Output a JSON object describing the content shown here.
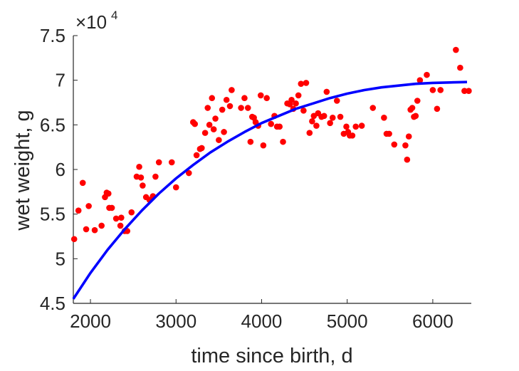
{
  "chart_data": {
    "type": "scatter",
    "title": "",
    "xlabel": "time since birth, d",
    "ylabel": "wet weight, g",
    "xlim": [
      1800,
      6450
    ],
    "ylim": [
      45000,
      75000
    ],
    "xticks": [
      2000,
      3000,
      4000,
      5000,
      6000
    ],
    "xtick_labels": [
      "2000",
      "3000",
      "4000",
      "5000",
      "6000"
    ],
    "yticks": [
      45000,
      50000,
      55000,
      60000,
      65000,
      70000,
      75000
    ],
    "ytick_labels": [
      "4.5",
      "5",
      "5.5",
      "6",
      "6.5",
      "7",
      "7.5"
    ],
    "y_multiplier": {
      "base": "×10",
      "exponent": "4"
    },
    "grid": false,
    "series": [
      {
        "kind": "points",
        "color": "#ff0000",
        "points": [
          [
            1810,
            52200
          ],
          [
            1860,
            55400
          ],
          [
            1910,
            58500
          ],
          [
            1950,
            53300
          ],
          [
            1980,
            55900
          ],
          [
            2050,
            53200
          ],
          [
            2130,
            53700
          ],
          [
            2170,
            56900
          ],
          [
            2190,
            57400
          ],
          [
            2210,
            57300
          ],
          [
            2220,
            55700
          ],
          [
            2250,
            55700
          ],
          [
            2300,
            54500
          ],
          [
            2350,
            53700
          ],
          [
            2360,
            54600
          ],
          [
            2400,
            53100
          ],
          [
            2430,
            53100
          ],
          [
            2480,
            55200
          ],
          [
            2540,
            59200
          ],
          [
            2570,
            60300
          ],
          [
            2590,
            59100
          ],
          [
            2610,
            58200
          ],
          [
            2650,
            56900
          ],
          [
            2690,
            56600
          ],
          [
            2730,
            57000
          ],
          [
            2760,
            59200
          ],
          [
            2800,
            60800
          ],
          [
            2950,
            60800
          ],
          [
            3000,
            58000
          ],
          [
            3150,
            59600
          ],
          [
            3200,
            65300
          ],
          [
            3220,
            65100
          ],
          [
            3240,
            61600
          ],
          [
            3280,
            62300
          ],
          [
            3300,
            62400
          ],
          [
            3340,
            64100
          ],
          [
            3370,
            66900
          ],
          [
            3390,
            65000
          ],
          [
            3420,
            68000
          ],
          [
            3440,
            64500
          ],
          [
            3460,
            65700
          ],
          [
            3500,
            63300
          ],
          [
            3540,
            66700
          ],
          [
            3560,
            64200
          ],
          [
            3590,
            67800
          ],
          [
            3630,
            67100
          ],
          [
            3650,
            68900
          ],
          [
            3760,
            66900
          ],
          [
            3800,
            68000
          ],
          [
            3840,
            66900
          ],
          [
            3870,
            63100
          ],
          [
            3890,
            65900
          ],
          [
            3910,
            65800
          ],
          [
            3930,
            65300
          ],
          [
            3960,
            64900
          ],
          [
            3990,
            68300
          ],
          [
            4020,
            62700
          ],
          [
            4060,
            68000
          ],
          [
            4110,
            65100
          ],
          [
            4150,
            66000
          ],
          [
            4180,
            64800
          ],
          [
            4210,
            64800
          ],
          [
            4250,
            63100
          ],
          [
            4300,
            67400
          ],
          [
            4330,
            67300
          ],
          [
            4350,
            67800
          ],
          [
            4370,
            66800
          ],
          [
            4400,
            67400
          ],
          [
            4430,
            68300
          ],
          [
            4460,
            69600
          ],
          [
            4490,
            66600
          ],
          [
            4520,
            69700
          ],
          [
            4560,
            64100
          ],
          [
            4590,
            65400
          ],
          [
            4610,
            66000
          ],
          [
            4640,
            64900
          ],
          [
            4660,
            66300
          ],
          [
            4700,
            65900
          ],
          [
            4730,
            66000
          ],
          [
            4760,
            68700
          ],
          [
            4800,
            65200
          ],
          [
            4830,
            65800
          ],
          [
            4880,
            67700
          ],
          [
            4920,
            65900
          ],
          [
            4960,
            64000
          ],
          [
            4990,
            64800
          ],
          [
            5010,
            64200
          ],
          [
            5030,
            63800
          ],
          [
            5060,
            63800
          ],
          [
            5100,
            64800
          ],
          [
            5170,
            64900
          ],
          [
            5300,
            66900
          ],
          [
            5430,
            65800
          ],
          [
            5460,
            64000
          ],
          [
            5490,
            64000
          ],
          [
            5550,
            62800
          ],
          [
            5680,
            62700
          ],
          [
            5700,
            61100
          ],
          [
            5720,
            63700
          ],
          [
            5740,
            66700
          ],
          [
            5760,
            66900
          ],
          [
            5780,
            65900
          ],
          [
            5800,
            66000
          ],
          [
            5820,
            67700
          ],
          [
            5850,
            70000
          ],
          [
            5930,
            70600
          ],
          [
            6000,
            68900
          ],
          [
            6050,
            66800
          ],
          [
            6090,
            68900
          ],
          [
            6270,
            73400
          ],
          [
            6320,
            71400
          ],
          [
            6370,
            68800
          ],
          [
            6420,
            68800
          ]
        ]
      },
      {
        "kind": "curve",
        "color": "#0000ff",
        "x": [
          1800,
          2000,
          2200,
          2400,
          2600,
          2800,
          3000,
          3200,
          3400,
          3600,
          3800,
          4000,
          4200,
          4400,
          4600,
          4800,
          5000,
          5200,
          5400,
          5600,
          5800,
          6000,
          6200,
          6400
        ],
        "y": [
          45500,
          48400,
          51000,
          53300,
          55400,
          57300,
          59000,
          60500,
          61900,
          63100,
          64200,
          65200,
          66000,
          66800,
          67400,
          68000,
          68500,
          68900,
          69200,
          69400,
          69600,
          69700,
          69750,
          69800
        ]
      }
    ]
  }
}
